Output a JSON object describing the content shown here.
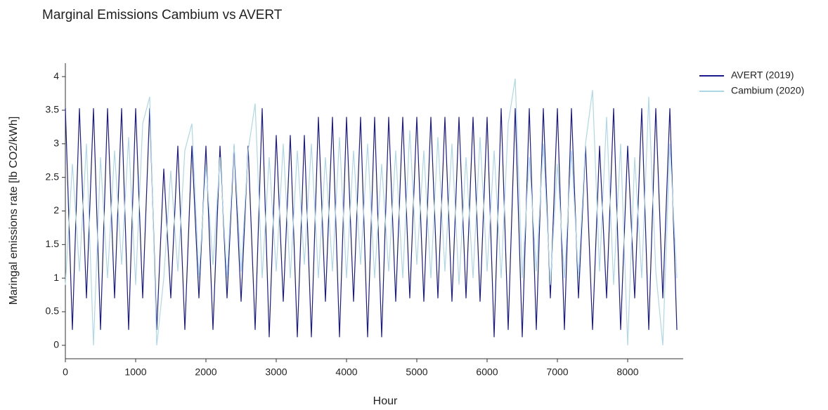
{
  "chart_data": {
    "type": "line",
    "title": "Marginal Emissions Cambium vs AVERT",
    "x_label": "Hour",
    "y_label": "Maringal emissions rate [lb CO2/kWh]",
    "x": [
      0,
      100,
      200,
      300,
      400,
      500,
      600,
      700,
      800,
      900,
      1000,
      1100,
      1200,
      1300,
      1400,
      1500,
      1600,
      1700,
      1800,
      1900,
      2000,
      2100,
      2200,
      2300,
      2400,
      2500,
      2600,
      2700,
      2800,
      2900,
      3000,
      3100,
      3200,
      3300,
      3400,
      3500,
      3600,
      3700,
      3800,
      3900,
      4000,
      4100,
      4200,
      4300,
      4400,
      4500,
      4600,
      4700,
      4800,
      4900,
      5000,
      5100,
      5200,
      5300,
      5400,
      5500,
      5600,
      5700,
      5800,
      5900,
      6000,
      6100,
      6200,
      6300,
      6400,
      6500,
      6600,
      6700,
      6800,
      6900,
      7000,
      7100,
      7200,
      7300,
      7400,
      7500,
      7600,
      7700,
      7800,
      7900,
      8000,
      8100,
      8200,
      8300,
      8400,
      8500,
      8600,
      8700
    ],
    "series": [
      {
        "name": "AVERT (2019)",
        "color": "#1a1a8c",
        "values": [
          3.53,
          0.23,
          3.53,
          0.7,
          3.53,
          0.23,
          3.53,
          0.7,
          3.53,
          0.23,
          3.53,
          0.7,
          3.53,
          0.23,
          2.63,
          0.7,
          2.97,
          0.23,
          2.97,
          0.7,
          2.97,
          0.23,
          2.97,
          0.7,
          2.97,
          0.65,
          2.97,
          0.23,
          3.53,
          0.12,
          3.13,
          0.65,
          3.13,
          0.12,
          3.13,
          0.12,
          3.4,
          0.65,
          3.4,
          0.12,
          3.4,
          0.65,
          3.4,
          0.12,
          3.4,
          0.12,
          3.4,
          0.65,
          3.4,
          0.7,
          3.4,
          0.65,
          3.4,
          0.7,
          3.4,
          0.65,
          3.4,
          0.7,
          3.4,
          0.65,
          3.4,
          0.12,
          3.53,
          0.23,
          3.53,
          0.12,
          3.53,
          0.23,
          3.53,
          0.7,
          3.53,
          0.23,
          3.53,
          0.7,
          2.97,
          0.23,
          2.97,
          0.7,
          3.53,
          0.23,
          2.97,
          0.7,
          3.53,
          0.23,
          3.53,
          0.7,
          3.53,
          0.23
        ]
      },
      {
        "name": "Cambium (2020)",
        "color": "#add8e6",
        "values": [
          0.9,
          2.7,
          1.1,
          3.0,
          0.0,
          2.8,
          1.0,
          2.9,
          1.2,
          3.1,
          0.9,
          3.3,
          3.7,
          0.0,
          1.0,
          2.6,
          1.1,
          2.9,
          3.3,
          1.0,
          2.7,
          1.2,
          2.8,
          1.0,
          3.0,
          1.1,
          2.9,
          3.6,
          1.0,
          2.8,
          1.1,
          3.0,
          1.0,
          2.9,
          1.2,
          3.0,
          1.0,
          2.8,
          1.1,
          3.1,
          1.0,
          2.9,
          1.2,
          3.0,
          1.0,
          2.7,
          1.1,
          2.9,
          1.0,
          3.2,
          1.2,
          2.9,
          1.0,
          3.1,
          1.1,
          3.0,
          0.9,
          2.8,
          1.0,
          3.1,
          1.1,
          2.9,
          1.0,
          3.3,
          3.97,
          1.0,
          2.8,
          1.1,
          3.0,
          0.9,
          2.7,
          1.0,
          2.9,
          1.0,
          3.0,
          3.8,
          1.1,
          3.4,
          0.9,
          3.0,
          0.0,
          2.8,
          1.0,
          3.7,
          1.1,
          0.0,
          3.0,
          1.0
        ]
      }
    ],
    "xlim": [
      0,
      8760
    ],
    "ylim": [
      -0.2,
      4.2
    ],
    "xticks": [
      0,
      1000,
      2000,
      3000,
      4000,
      5000,
      6000,
      7000,
      8000
    ],
    "yticks": [
      0,
      0.5,
      1,
      1.5,
      2,
      2.5,
      3,
      3.5,
      4
    ],
    "grid": false,
    "legend": "upper right"
  }
}
